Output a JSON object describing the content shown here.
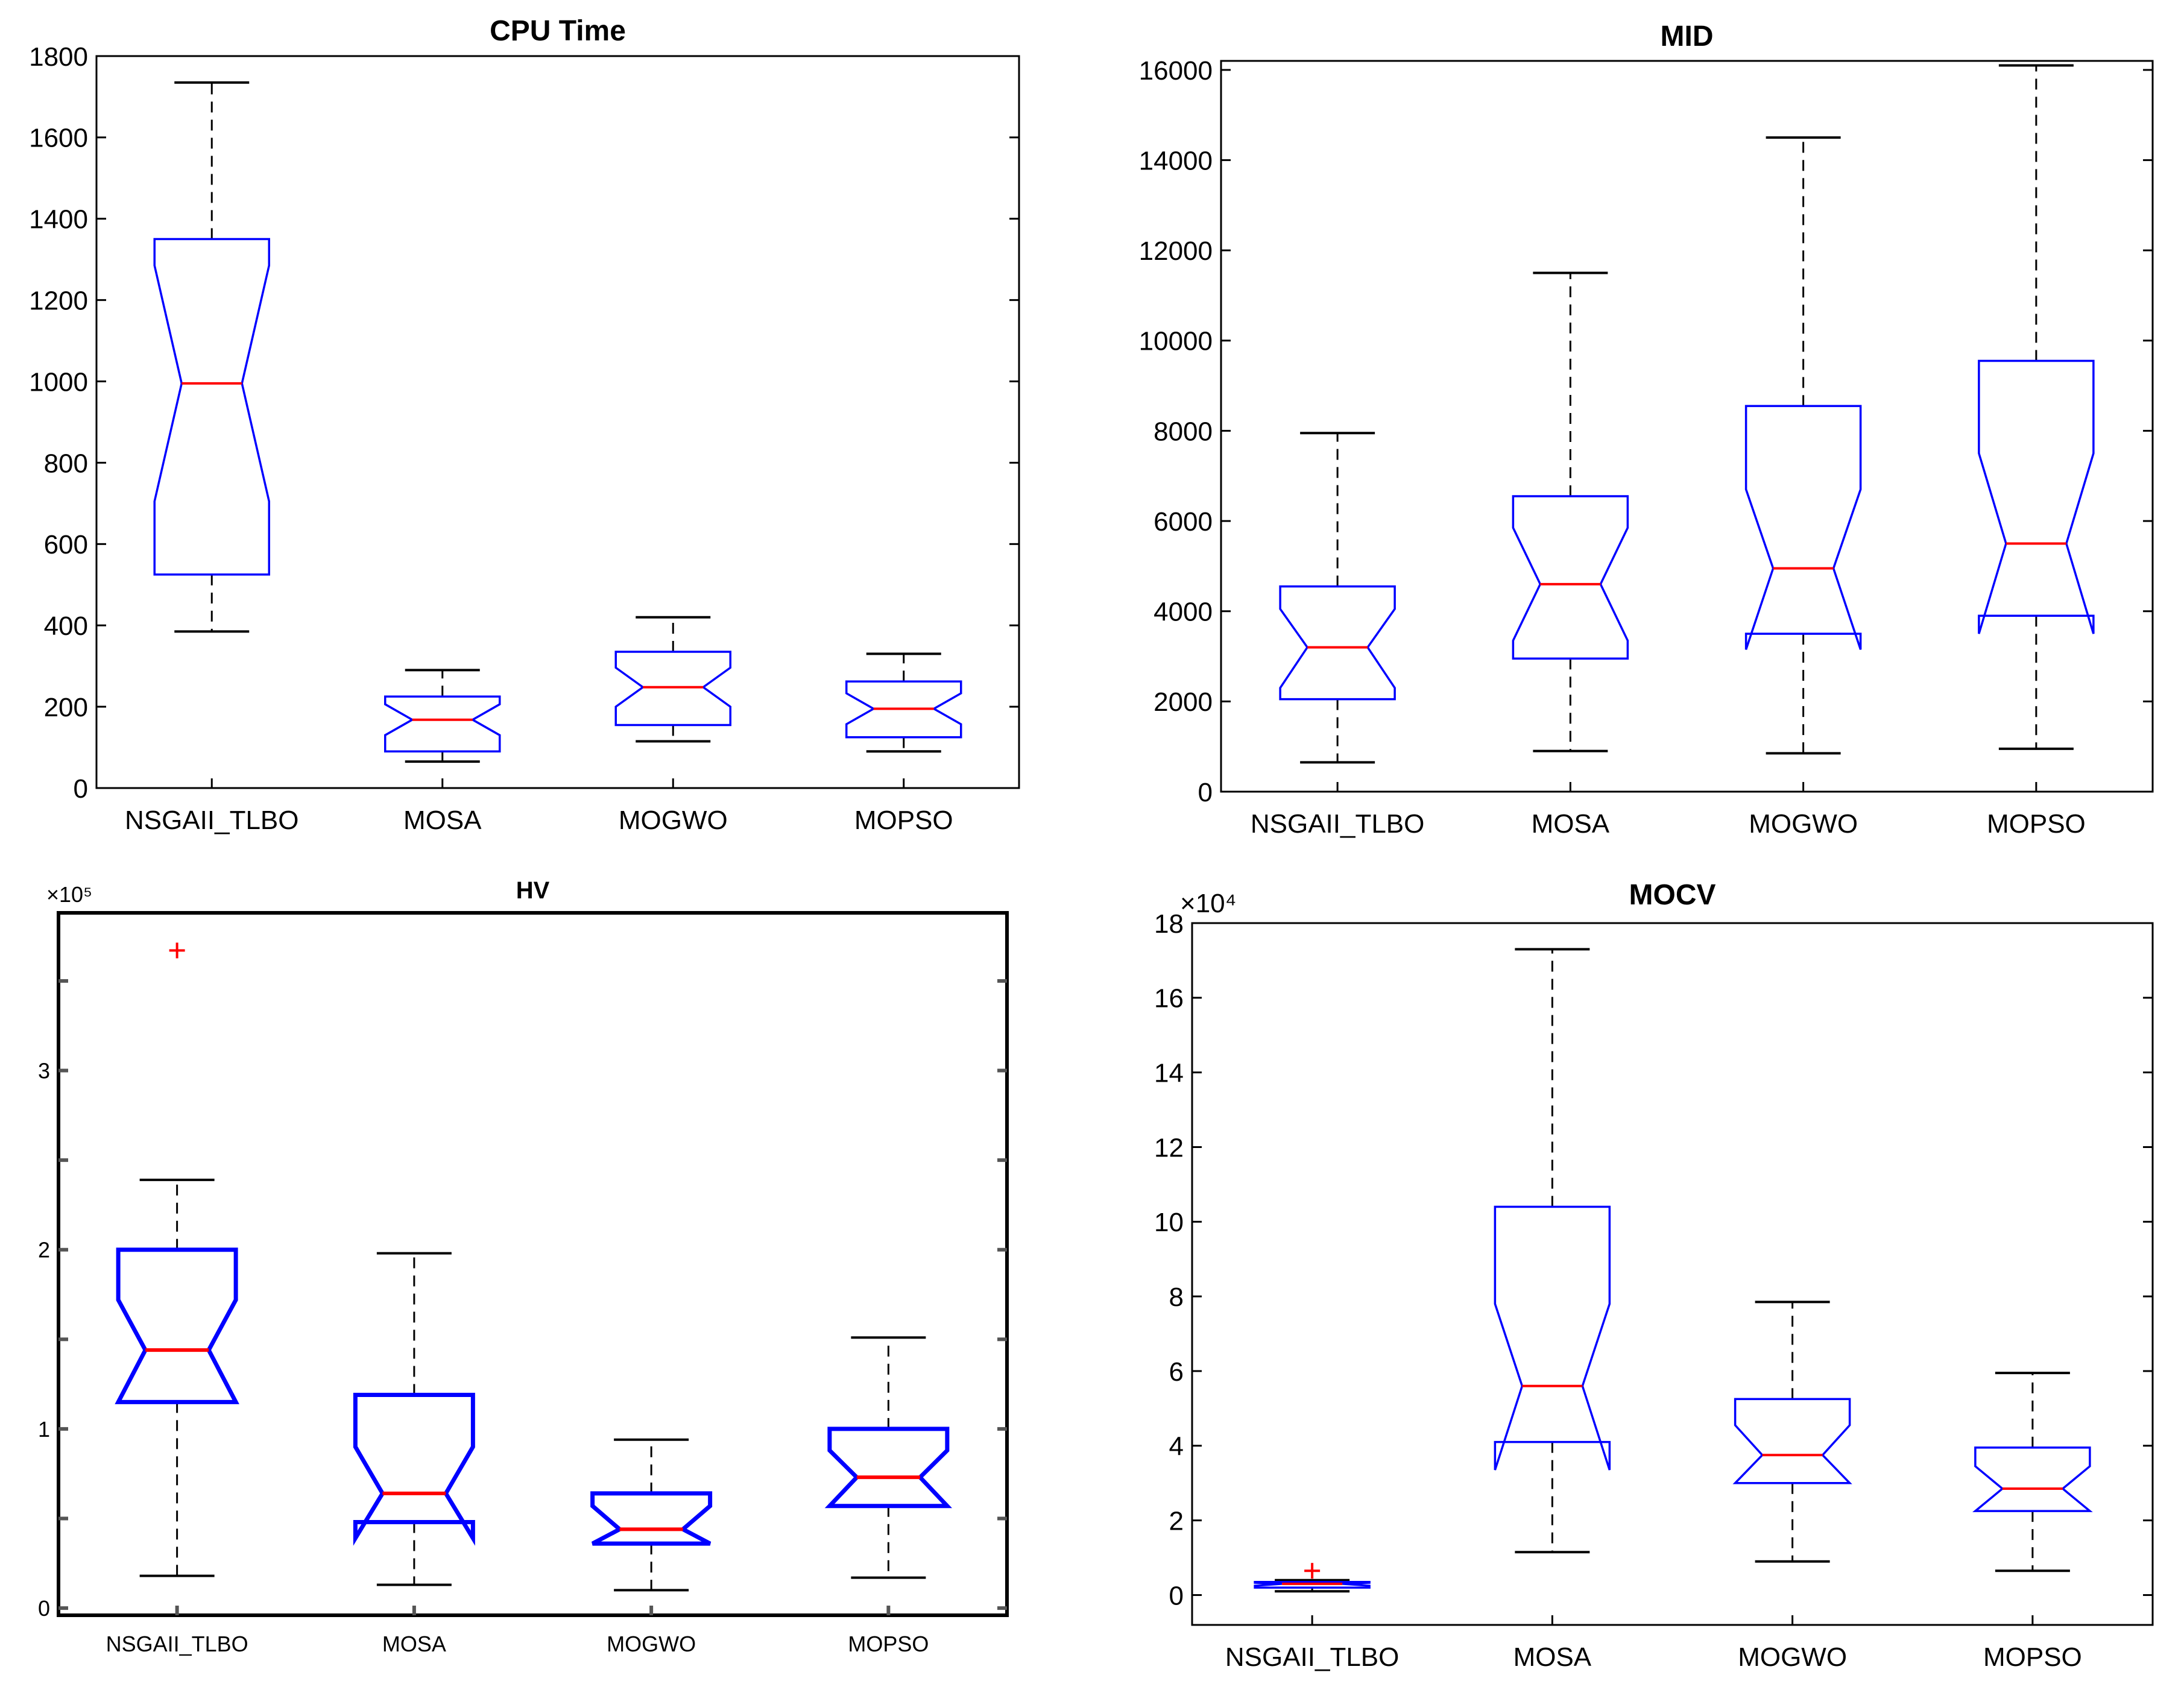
{
  "chart_data": [
    {
      "type": "boxplot",
      "title": "CPU Time",
      "xlabel": "",
      "ylabel": "",
      "categories": [
        "NSGAII_TLBO",
        "MOSA",
        "MOGWO",
        "MOPSO"
      ],
      "ylim": [
        0,
        1800
      ],
      "yticks": [
        0,
        200,
        400,
        600,
        800,
        1000,
        1200,
        1400,
        1600,
        1800
      ],
      "ytick_labels": [
        "0",
        "200",
        "400",
        "600",
        "800",
        "1000",
        "1200",
        "1400",
        "1600",
        "1800"
      ],
      "exponent_label": "",
      "grid": false,
      "boxes": [
        {
          "category": "NSGAII_TLBO",
          "whisker_low": 385,
          "q1": 525,
          "median": 995,
          "q3": 1350,
          "whisker_high": 1735,
          "notch_low": 705,
          "notch_high": 1285,
          "outliers": []
        },
        {
          "category": "MOSA",
          "whisker_low": 65,
          "q1": 90,
          "median": 168,
          "q3": 225,
          "whisker_high": 290,
          "notch_low": 130,
          "notch_high": 206,
          "outliers": []
        },
        {
          "category": "MOGWO",
          "whisker_low": 115,
          "q1": 155,
          "median": 248,
          "q3": 335,
          "whisker_high": 420,
          "notch_low": 200,
          "notch_high": 296,
          "outliers": []
        },
        {
          "category": "MOPSO",
          "whisker_low": 90,
          "q1": 125,
          "median": 195,
          "q3": 262,
          "whisker_high": 330,
          "notch_low": 157,
          "notch_high": 233,
          "outliers": []
        }
      ]
    },
    {
      "type": "boxplot",
      "title": "MID",
      "xlabel": "",
      "ylabel": "",
      "categories": [
        "NSGAII_TLBO",
        "MOSA",
        "MOGWO",
        "MOPSO"
      ],
      "ylim": [
        0,
        16200
      ],
      "yticks": [
        0,
        2000,
        4000,
        6000,
        8000,
        10000,
        12000,
        14000,
        16000
      ],
      "ytick_labels": [
        "0",
        "2000",
        "4000",
        "6000",
        "8000",
        "10000",
        "12000",
        "14000",
        "16000"
      ],
      "exponent_label": "",
      "grid": false,
      "boxes": [
        {
          "category": "NSGAII_TLBO",
          "whisker_low": 650,
          "q1": 2050,
          "median": 3200,
          "q3": 4550,
          "whisker_high": 7950,
          "notch_low": 2300,
          "notch_high": 4050,
          "outliers": []
        },
        {
          "category": "MOSA",
          "whisker_low": 900,
          "q1": 2950,
          "median": 4600,
          "q3": 6550,
          "whisker_high": 11500,
          "notch_low": 3350,
          "notch_high": 5850,
          "outliers": []
        },
        {
          "category": "MOGWO",
          "whisker_low": 850,
          "q1": 3500,
          "median": 4950,
          "q3": 8550,
          "whisker_high": 14500,
          "notch_low": 3150,
          "notch_high": 6700,
          "outliers": []
        },
        {
          "category": "MOPSO",
          "whisker_low": 950,
          "q1": 3900,
          "median": 5500,
          "q3": 9550,
          "whisker_high": 16100,
          "notch_low": 3500,
          "notch_high": 7500,
          "outliers": []
        }
      ]
    },
    {
      "type": "boxplot",
      "title": "HV",
      "xlabel": "",
      "ylabel": "",
      "categories": [
        "NSGAII_TLBO",
        "MOSA",
        "MOGWO",
        "MOPSO"
      ],
      "ylim": [
        -0.04,
        3.88
      ],
      "yticks": [
        0,
        0.5,
        1,
        1.5,
        2,
        2.5,
        3,
        3.5
      ],
      "ytick_labels": [
        "0",
        "",
        "1",
        "",
        "2",
        "",
        "3",
        ""
      ],
      "exponent_label": "×10⁵",
      "grid": false,
      "boxes": [
        {
          "category": "NSGAII_TLBO",
          "whisker_low": 0.18,
          "q1": 1.15,
          "median": 1.44,
          "q3": 2.0,
          "whisker_high": 2.39,
          "notch_low": 1.15,
          "notch_high": 1.72,
          "outliers": [
            3.67
          ]
        },
        {
          "category": "MOSA",
          "whisker_low": 0.13,
          "q1": 0.48,
          "median": 0.64,
          "q3": 1.19,
          "whisker_high": 1.98,
          "notch_low": 0.39,
          "notch_high": 0.9,
          "outliers": []
        },
        {
          "category": "MOGWO",
          "whisker_low": 0.1,
          "q1": 0.36,
          "median": 0.44,
          "q3": 0.64,
          "whisker_high": 0.94,
          "notch_low": 0.36,
          "notch_high": 0.57,
          "outliers": []
        },
        {
          "category": "MOPSO",
          "whisker_low": 0.17,
          "q1": 0.57,
          "median": 0.73,
          "q3": 1.0,
          "whisker_high": 1.51,
          "notch_low": 0.57,
          "notch_high": 0.88,
          "outliers": []
        }
      ]
    },
    {
      "type": "boxplot",
      "title": "MOCV",
      "xlabel": "",
      "ylabel": "",
      "categories": [
        "NSGAII_TLBO",
        "MOSA",
        "MOGWO",
        "MOPSO"
      ],
      "ylim": [
        -0.8,
        18
      ],
      "yticks": [
        0,
        2,
        4,
        6,
        8,
        10,
        12,
        14,
        16,
        18
      ],
      "ytick_labels": [
        "0",
        "2",
        "4",
        "6",
        "8",
        "10",
        "12",
        "14",
        "16",
        "18"
      ],
      "exponent_label": "×10⁴",
      "grid": false,
      "boxes": [
        {
          "category": "NSGAII_TLBO",
          "whisker_low": 0.1,
          "q1": 0.2,
          "median": 0.3,
          "q3": 0.35,
          "whisker_high": 0.4,
          "notch_low": 0.25,
          "notch_high": 0.33,
          "outliers": [
            0.65
          ]
        },
        {
          "category": "MOSA",
          "whisker_low": 1.15,
          "q1": 4.1,
          "median": 5.6,
          "q3": 10.4,
          "whisker_high": 17.3,
          "notch_low": 3.35,
          "notch_high": 7.8,
          "outliers": []
        },
        {
          "category": "MOGWO",
          "whisker_low": 0.9,
          "q1": 3.0,
          "median": 3.75,
          "q3": 5.25,
          "whisker_high": 7.85,
          "notch_low": 3.0,
          "notch_high": 4.55,
          "outliers": []
        },
        {
          "category": "MOPSO",
          "whisker_low": 0.65,
          "q1": 2.25,
          "median": 2.85,
          "q3": 3.95,
          "whisker_high": 5.95,
          "notch_low": 2.25,
          "notch_high": 3.45,
          "outliers": []
        }
      ]
    }
  ],
  "colors": {
    "box": "#0000ff",
    "median": "#ff0000",
    "whisker": "#000000",
    "outlier": "#ff0000",
    "hv_axis": "#555555"
  }
}
